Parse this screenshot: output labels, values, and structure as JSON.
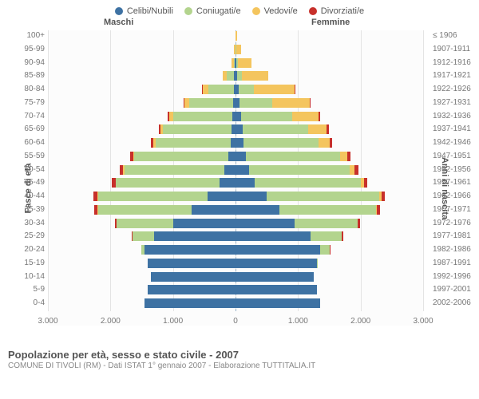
{
  "legend": [
    {
      "label": "Celibi/Nubili",
      "color": "#3e72a3"
    },
    {
      "label": "Coniugati/e",
      "color": "#b3d48e"
    },
    {
      "label": "Vedovi/e",
      "color": "#f4c55e"
    },
    {
      "label": "Divorziati/e",
      "color": "#c7302b"
    }
  ],
  "headers": {
    "male": "Maschi",
    "female": "Femmine"
  },
  "axis_left": "Fasce di età",
  "axis_right": "Anni di nascita",
  "title": "Popolazione per età, sesso e stato civile - 2007",
  "subtitle": "COMUNE DI TIVOLI (RM) - Dati ISTAT 1° gennaio 2007 - Elaborazione TUTTITALIA.IT",
  "chart": {
    "type": "population-pyramid",
    "xlim": 3000,
    "xtick_step": 1000,
    "xticks": [
      "3.000",
      "2.000",
      "1.000",
      "0",
      "1.000",
      "2.000",
      "3.000"
    ],
    "row_height": 16.7,
    "bar_colors": {
      "single": "#3e72a3",
      "married": "#b3d48e",
      "widowed": "#f4c55e",
      "divorced": "#c7302b"
    },
    "background_color": "#fcfcfc",
    "grid_color": "#e4e4e4",
    "center_line_color": "#9ab3c9",
    "label_fontsize": 10,
    "label_color": "#777",
    "rows": [
      {
        "age": "100+",
        "birth": "≤ 1906",
        "m": [
          0,
          0,
          5,
          0
        ],
        "f": [
          0,
          0,
          20,
          0
        ]
      },
      {
        "age": "95-99",
        "birth": "1907-1911",
        "m": [
          3,
          0,
          20,
          0
        ],
        "f": [
          5,
          5,
          80,
          0
        ]
      },
      {
        "age": "90-94",
        "birth": "1912-1916",
        "m": [
          10,
          20,
          40,
          0
        ],
        "f": [
          15,
          20,
          220,
          0
        ]
      },
      {
        "age": "85-89",
        "birth": "1917-1921",
        "m": [
          20,
          120,
          60,
          0
        ],
        "f": [
          30,
          70,
          420,
          0
        ]
      },
      {
        "age": "80-84",
        "birth": "1922-1926",
        "m": [
          30,
          400,
          100,
          5
        ],
        "f": [
          50,
          250,
          650,
          10
        ]
      },
      {
        "age": "75-79",
        "birth": "1927-1931",
        "m": [
          40,
          700,
          80,
          10
        ],
        "f": [
          70,
          520,
          600,
          15
        ]
      },
      {
        "age": "70-74",
        "birth": "1932-1936",
        "m": [
          50,
          950,
          60,
          20
        ],
        "f": [
          90,
          820,
          420,
          20
        ]
      },
      {
        "age": "65-69",
        "birth": "1937-1941",
        "m": [
          60,
          1100,
          40,
          30
        ],
        "f": [
          110,
          1050,
          300,
          30
        ]
      },
      {
        "age": "60-64",
        "birth": "1942-1946",
        "m": [
          80,
          1200,
          30,
          40
        ],
        "f": [
          130,
          1200,
          180,
          40
        ]
      },
      {
        "age": "55-59",
        "birth": "1947-1951",
        "m": [
          120,
          1500,
          20,
          50
        ],
        "f": [
          170,
          1500,
          120,
          50
        ]
      },
      {
        "age": "50-54",
        "birth": "1952-1956",
        "m": [
          180,
          1600,
          15,
          55
        ],
        "f": [
          220,
          1600,
          80,
          60
        ]
      },
      {
        "age": "45-49",
        "birth": "1957-1961",
        "m": [
          260,
          1650,
          10,
          60
        ],
        "f": [
          300,
          1700,
          50,
          60
        ]
      },
      {
        "age": "40-44",
        "birth": "1962-1966",
        "m": [
          450,
          1750,
          8,
          60
        ],
        "f": [
          500,
          1800,
          30,
          60
        ]
      },
      {
        "age": "35-39",
        "birth": "1967-1971",
        "m": [
          700,
          1500,
          5,
          50
        ],
        "f": [
          700,
          1550,
          15,
          50
        ]
      },
      {
        "age": "30-34",
        "birth": "1972-1976",
        "m": [
          1000,
          900,
          3,
          30
        ],
        "f": [
          950,
          1000,
          8,
          30
        ]
      },
      {
        "age": "25-29",
        "birth": "1977-1981",
        "m": [
          1300,
          350,
          0,
          10
        ],
        "f": [
          1200,
          500,
          3,
          15
        ]
      },
      {
        "age": "20-24",
        "birth": "1982-1986",
        "m": [
          1450,
          60,
          0,
          2
        ],
        "f": [
          1350,
          150,
          0,
          5
        ]
      },
      {
        "age": "15-19",
        "birth": "1987-1991",
        "m": [
          1400,
          5,
          0,
          0
        ],
        "f": [
          1300,
          15,
          0,
          0
        ]
      },
      {
        "age": "10-14",
        "birth": "1992-1996",
        "m": [
          1350,
          0,
          0,
          0
        ],
        "f": [
          1250,
          0,
          0,
          0
        ]
      },
      {
        "age": "5-9",
        "birth": "1997-2001",
        "m": [
          1400,
          0,
          0,
          0
        ],
        "f": [
          1300,
          0,
          0,
          0
        ]
      },
      {
        "age": "0-4",
        "birth": "2002-2006",
        "m": [
          1450,
          0,
          0,
          0
        ],
        "f": [
          1350,
          0,
          0,
          0
        ]
      }
    ]
  }
}
